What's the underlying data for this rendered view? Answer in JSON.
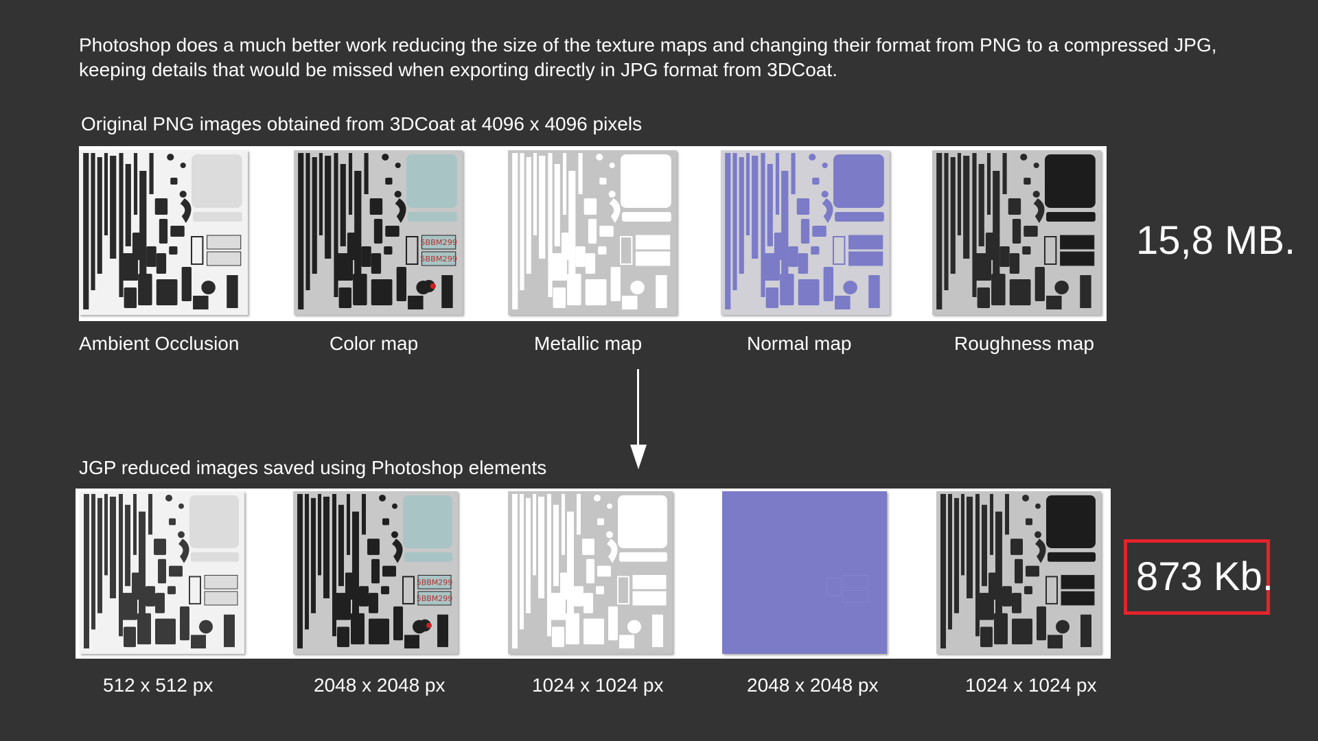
{
  "intro_text": "Photoshop does a much better work reducing the size of the texture maps and changing their format from PNG to a compressed JPG, keeping details that would be missed when exporting directly in JPG format from 3DCoat.",
  "original": {
    "heading": "Original  PNG images obtained from 3DCoat at 4096 x 4096 pixels",
    "total_size": "15,8 MB.",
    "maps": [
      {
        "label": "Ambient Occlusion",
        "bg": "#f2f2f2",
        "fg": "#2a2a2a",
        "panel": "#dcdcdc"
      },
      {
        "label": "Color map",
        "bg": "#c8c8c8",
        "fg": "#202020",
        "panel": "#a9c4c4",
        "plate_text": "5BBM299"
      },
      {
        "label": "Metallic map",
        "bg": "#c4c4c4",
        "fg": "#ffffff",
        "panel": "#ffffff"
      },
      {
        "label": "Normal map",
        "bg": "#d0d0d6",
        "fg": "#7b7bc8",
        "panel": "#7b7bc8"
      },
      {
        "label": "Roughness map",
        "bg": "#c4c4c4",
        "fg": "#2a2a2a",
        "panel": "#1c1c1c"
      }
    ]
  },
  "reduced": {
    "heading": "JGP reduced images saved using Photoshop elements",
    "total_size": "873 Kb.",
    "maps": [
      {
        "label": "512 x 512 px",
        "bg": "#f2f2f2",
        "fg": "#3a3a3a",
        "panel": "#dcdcdc"
      },
      {
        "label": "2048 x 2048 px",
        "bg": "#c8c8c8",
        "fg": "#202020",
        "panel": "#a9c4c4",
        "plate_text": "5BBM299"
      },
      {
        "label": "1024 x 1024 px",
        "bg": "#c4c4c4",
        "fg": "#ffffff",
        "panel": "#ffffff"
      },
      {
        "label": "2048 x 2048 px",
        "bg": "#7b7bc8",
        "fg": "#7b7bc8",
        "panel": "#7b7bc8",
        "flat": true
      },
      {
        "label": "1024 x 1024 px",
        "bg": "#c4c4c4",
        "fg": "#2a2a2a",
        "panel": "#1c1c1c"
      }
    ]
  },
  "colors": {
    "background": "#333333",
    "highlight_border": "#e3242b"
  }
}
